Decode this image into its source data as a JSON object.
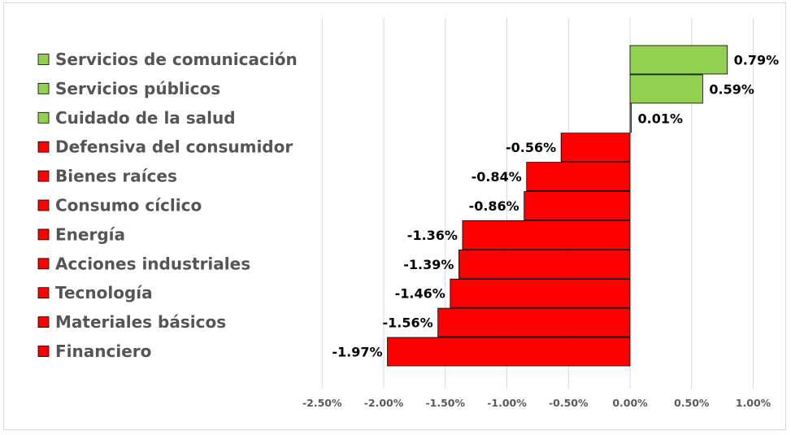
{
  "chart_data": {
    "type": "bar",
    "orientation": "horizontal",
    "categories": [
      "Servicios de comunicación",
      "Servicios públicos",
      "Cuidado de la salud",
      "Defensiva del consumidor",
      "Bienes raíces",
      "Consumo cíclico",
      "Energía",
      "Acciones industriales",
      "Tecnología",
      "Materiales básicos",
      "Financiero"
    ],
    "values": [
      0.79,
      0.59,
      0.01,
      -0.56,
      -0.84,
      -0.86,
      -1.36,
      -1.39,
      -1.46,
      -1.56,
      -1.97
    ],
    "data_labels": [
      "0.79%",
      "0.59%",
      "0.01%",
      "-0.56%",
      "-0.84%",
      "-0.86%",
      "-1.36%",
      "-1.39%",
      "-1.46%",
      "-1.56%",
      "-1.97%"
    ],
    "x_ticks": [
      -2.5,
      -2.0,
      -1.5,
      -1.0,
      -0.5,
      0.0,
      0.5,
      1.0
    ],
    "x_tick_labels": [
      "-2.50%",
      "-2.00%",
      "-1.50%",
      "-1.00%",
      "-0.50%",
      "0.00%",
      "0.50%",
      "1.00%"
    ],
    "xlim": [
      -2.5,
      1.0
    ],
    "title": "",
    "xlabel": "",
    "ylabel": "",
    "grid": "vertical",
    "legend_position": "left",
    "colors": {
      "positive": "#92d050",
      "negative": "#ff0000",
      "bar_border": "#000000",
      "gridline": "#d9d9d9"
    }
  }
}
